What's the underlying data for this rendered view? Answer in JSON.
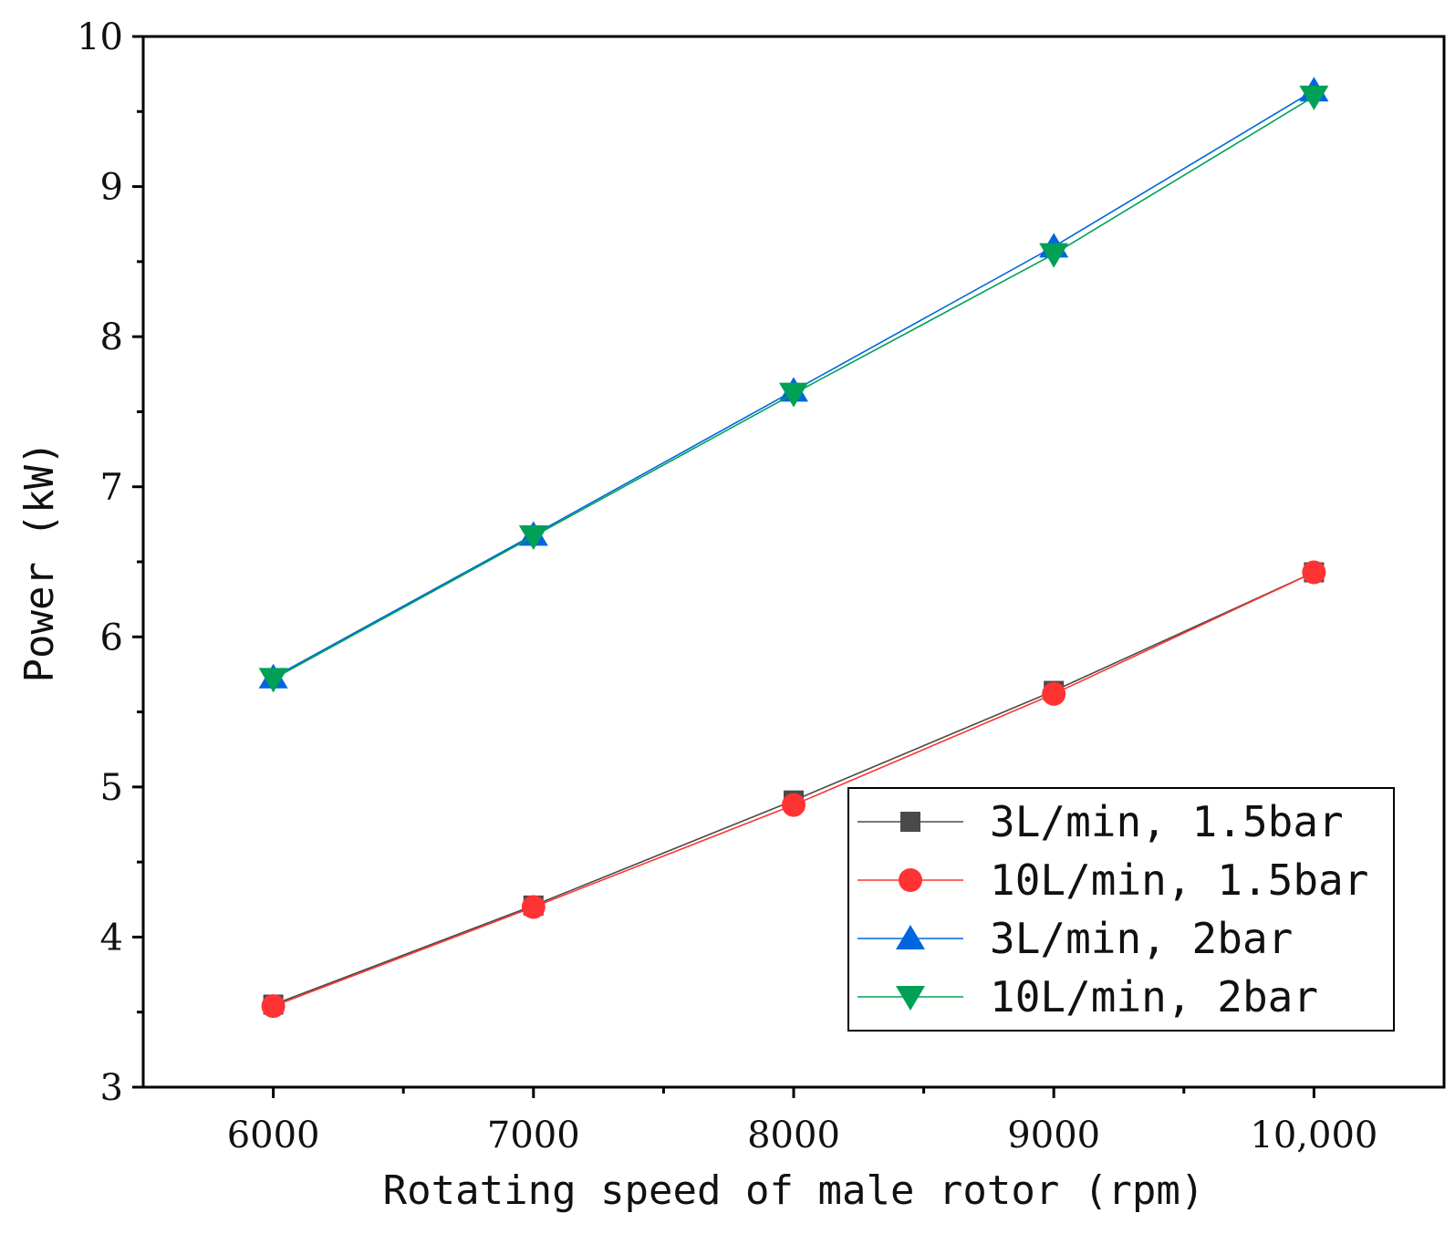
{
  "chart_data": {
    "type": "line",
    "title": "",
    "xlabel": "Rotating speed of male rotor (rpm)",
    "ylabel": "Power (kW)",
    "xlim": [
      5500,
      10500
    ],
    "ylim": [
      3,
      10
    ],
    "x": [
      6000,
      7000,
      8000,
      9000,
      10000
    ],
    "xticks": [
      {
        "value": 6000,
        "label": "6000"
      },
      {
        "value": 7000,
        "label": "7000"
      },
      {
        "value": 8000,
        "label": "8000"
      },
      {
        "value": 9000,
        "label": "9000"
      },
      {
        "value": 10000,
        "label": "10,000"
      }
    ],
    "xminor": [
      6500,
      7500,
      8500,
      9500
    ],
    "yticks": [
      {
        "value": 3,
        "label": "3"
      },
      {
        "value": 4,
        "label": "4"
      },
      {
        "value": 5,
        "label": "5"
      },
      {
        "value": 6,
        "label": "6"
      },
      {
        "value": 7,
        "label": "7"
      },
      {
        "value": 8,
        "label": "8"
      },
      {
        "value": 9,
        "label": "9"
      },
      {
        "value": 10,
        "label": "10"
      }
    ],
    "yminor": [
      3.5,
      4.5,
      5.5,
      6.5,
      7.5,
      8.5,
      9.5
    ],
    "grid": false,
    "legend_position": "bottom-right",
    "series": [
      {
        "name": "3L/min, 1.5bar",
        "color": "#4a4a4a",
        "marker": "square",
        "values": [
          3.55,
          4.21,
          4.91,
          5.64,
          6.43
        ]
      },
      {
        "name": "10L/min, 1.5bar",
        "color": "#ff3333",
        "marker": "circle",
        "values": [
          3.54,
          4.2,
          4.88,
          5.62,
          6.43
        ]
      },
      {
        "name": "3L/min, 2bar",
        "color": "#0066dd",
        "marker": "triangle-up",
        "values": [
          5.73,
          6.68,
          7.64,
          8.6,
          9.64
        ]
      },
      {
        "name": "10L/min, 2bar",
        "color": "#00a056",
        "marker": "triangle-down",
        "values": [
          5.72,
          6.67,
          7.62,
          8.55,
          9.6
        ]
      }
    ]
  }
}
